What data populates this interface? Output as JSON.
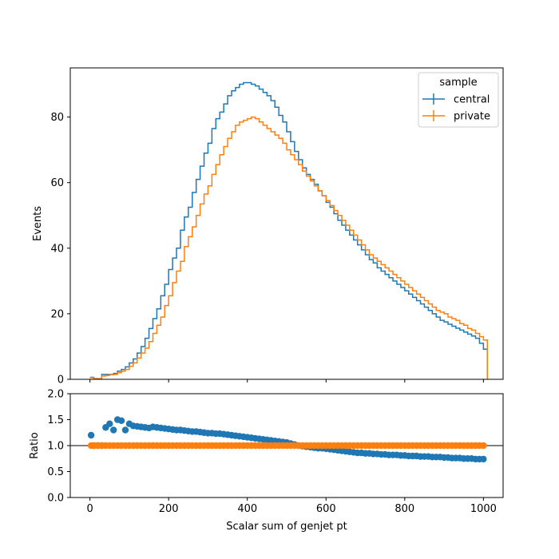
{
  "chart_data": [
    {
      "type": "step",
      "ylabel": "Events",
      "xlim": [
        -50,
        1050
      ],
      "ylim": [
        0,
        95
      ],
      "x_range": [
        0,
        1000
      ],
      "bin_width": 10,
      "yticks": [
        0,
        20,
        40,
        60,
        80
      ],
      "grid": false,
      "legend": {
        "title": "sample",
        "placement": "top-right",
        "entries": [
          "central",
          "private"
        ]
      },
      "series": [
        {
          "name": "central",
          "color": "#1f77b4",
          "values": [
            0.6,
            0.2,
            0.2,
            1.5,
            1.5,
            1.5,
            1.8,
            2.5,
            3.0,
            3.8,
            5.0,
            6.2,
            8.0,
            10.0,
            12.5,
            15.5,
            18.5,
            21.5,
            25.5,
            29.0,
            33.5,
            37.0,
            40.0,
            45.5,
            49.5,
            52.5,
            57.0,
            61.0,
            65.0,
            69.0,
            72.0,
            76.5,
            79.5,
            81.5,
            84.0,
            86.5,
            88.0,
            89.0,
            90.0,
            90.5,
            90.5,
            90.0,
            89.5,
            88.5,
            87.5,
            86.5,
            85.0,
            83.0,
            80.5,
            78.5,
            75.5,
            72.5,
            69.5,
            67.0,
            64.5,
            62.5,
            61.0,
            59.5,
            57.5,
            56.0,
            54.0,
            52.5,
            50.5,
            48.5,
            47.0,
            45.5,
            44.0,
            42.5,
            41.0,
            39.5,
            38.0,
            36.5,
            35.5,
            34.0,
            33.0,
            32.0,
            31.0,
            30.0,
            29.0,
            28.0,
            27.0,
            26.0,
            25.0,
            24.0,
            23.0,
            22.0,
            21.0,
            20.0,
            19.0,
            18.0,
            17.5,
            16.8,
            16.2,
            15.6,
            15.0,
            14.4,
            13.8,
            13.2,
            12.5,
            11.0,
            9.2
          ],
          "ratio": [
            1.2,
            1.0,
            1.0,
            1.0,
            1.35,
            1.42,
            1.3,
            1.5,
            1.48,
            1.3,
            1.42,
            1.38,
            1.37,
            1.36,
            1.35,
            1.34,
            1.36,
            1.35,
            1.34,
            1.33,
            1.32,
            1.31,
            1.3,
            1.3,
            1.29,
            1.28,
            1.27,
            1.27,
            1.26,
            1.25,
            1.24,
            1.24,
            1.23,
            1.23,
            1.22,
            1.21,
            1.2,
            1.19,
            1.18,
            1.17,
            1.16,
            1.15,
            1.14,
            1.13,
            1.12,
            1.11,
            1.1,
            1.09,
            1.08,
            1.07,
            1.06,
            1.04,
            1.02,
            1.0,
            0.99,
            0.98,
            0.97,
            0.96,
            0.95,
            0.95,
            0.94,
            0.93,
            0.92,
            0.91,
            0.9,
            0.89,
            0.88,
            0.87,
            0.86,
            0.86,
            0.85,
            0.85,
            0.84,
            0.84,
            0.83,
            0.83,
            0.82,
            0.82,
            0.82,
            0.81,
            0.81,
            0.8,
            0.8,
            0.8,
            0.79,
            0.79,
            0.79,
            0.78,
            0.78,
            0.78,
            0.77,
            0.77,
            0.76,
            0.76,
            0.76,
            0.75,
            0.75,
            0.75,
            0.74,
            0.74,
            0.74
          ]
        },
        {
          "name": "private",
          "color": "#ff7f0e",
          "values": [
            0.5,
            0.2,
            0.2,
            1.0,
            1.2,
            1.4,
            1.5,
            2.0,
            2.5,
            3.0,
            4.0,
            5.0,
            6.5,
            8.0,
            9.5,
            11.5,
            14.0,
            16.5,
            19.0,
            22.5,
            25.5,
            29.5,
            33.0,
            36.0,
            40.5,
            43.5,
            46.5,
            50.0,
            53.5,
            56.5,
            59.0,
            62.5,
            65.5,
            68.5,
            71.0,
            73.5,
            75.5,
            77.5,
            78.5,
            79.0,
            79.5,
            80.0,
            79.5,
            78.5,
            77.5,
            76.5,
            75.5,
            74.5,
            73.5,
            72.0,
            70.0,
            68.5,
            67.0,
            65.5,
            63.5,
            62.0,
            60.5,
            59.0,
            57.5,
            56.0,
            54.5,
            53.0,
            51.5,
            50.0,
            48.5,
            47.0,
            45.5,
            44.0,
            42.5,
            41.0,
            39.5,
            38.0,
            37.0,
            36.0,
            35.0,
            34.0,
            33.0,
            32.0,
            31.0,
            30.0,
            29.0,
            28.0,
            27.0,
            26.0,
            25.0,
            24.0,
            23.0,
            22.0,
            21.0,
            20.5,
            20.0,
            19.0,
            18.5,
            18.0,
            17.0,
            16.5,
            15.5,
            15.0,
            14.0,
            13.0,
            12.0
          ],
          "ratio": [
            1.0,
            1.0,
            1.0,
            1.0,
            1.0,
            1.0,
            1.0,
            1.0,
            1.0,
            1.0,
            1.0,
            1.0,
            1.0,
            1.0,
            1.0,
            1.0,
            1.0,
            1.0,
            1.0,
            1.0,
            1.0,
            1.0,
            1.0,
            1.0,
            1.0,
            1.0,
            1.0,
            1.0,
            1.0,
            1.0,
            1.0,
            1.0,
            1.0,
            1.0,
            1.0,
            1.0,
            1.0,
            1.0,
            1.0,
            1.0,
            1.0,
            1.0,
            1.0,
            1.0,
            1.0,
            1.0,
            1.0,
            1.0,
            1.0,
            1.0,
            1.0,
            1.0,
            1.0,
            1.0,
            1.0,
            1.0,
            1.0,
            1.0,
            1.0,
            1.0,
            1.0,
            1.0,
            1.0,
            1.0,
            1.0,
            1.0,
            1.0,
            1.0,
            1.0,
            1.0,
            1.0,
            1.0,
            1.0,
            1.0,
            1.0,
            1.0,
            1.0,
            1.0,
            1.0,
            1.0,
            1.0,
            1.0,
            1.0,
            1.0,
            1.0,
            1.0,
            1.0,
            1.0,
            1.0,
            1.0,
            1.0,
            1.0,
            1.0,
            1.0,
            1.0,
            1.0,
            1.0,
            1.0,
            1.0,
            1.0,
            1.0
          ]
        }
      ]
    },
    {
      "type": "scatter",
      "xlabel": "Scalar sum of genjet pt",
      "ylabel": "Ratio",
      "xlim": [
        -50,
        1050
      ],
      "ylim": [
        0.0,
        2.0
      ],
      "xticks": [
        0,
        200,
        400,
        600,
        800,
        1000
      ],
      "yticks": [
        0.0,
        0.5,
        1.0,
        1.5,
        2.0
      ],
      "ytick_labels": [
        "0.0",
        "0.5",
        "1.0",
        "1.5",
        "2.0"
      ],
      "reference_line": 1.0,
      "series_from_upper": [
        "central",
        "private"
      ]
    }
  ]
}
